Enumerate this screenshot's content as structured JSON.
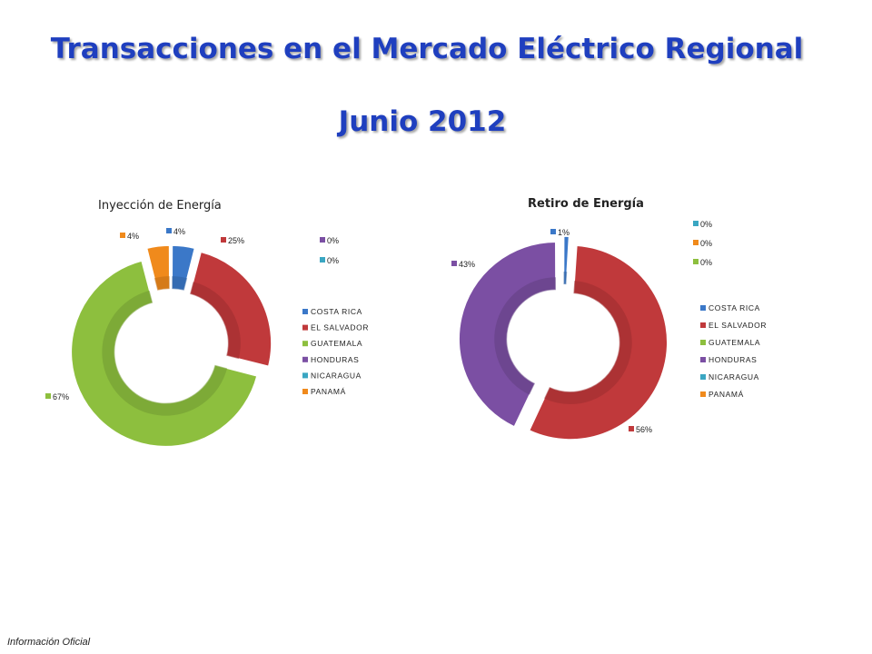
{
  "title": "Transacciones en el Mercado Eléctrico Regional",
  "subtitle": "Junio 2012",
  "footer": "Información Oficial",
  "chart_data": [
    {
      "type": "donut",
      "title": "Inyección de Energía",
      "categories": [
        "COSTA RICA",
        "EL SALVADOR",
        "GUATEMALA",
        "HONDURAS",
        "NICARAGUA",
        "PANAMÁ"
      ],
      "values": [
        4,
        25,
        67,
        0,
        0,
        4
      ],
      "labels": [
        "4%",
        "25%",
        "67%",
        "0%",
        "0%",
        "4%"
      ],
      "colors": [
        "#3b78c8",
        "#c0393b",
        "#8dbf3e",
        "#7b4fa3",
        "#3aa6c2",
        "#f08a1c"
      ],
      "legend": "right"
    },
    {
      "type": "donut",
      "title": "Retiro de Energía",
      "categories": [
        "COSTA RICA",
        "EL SALVADOR",
        "GUATEMALA",
        "HONDURAS",
        "NICARAGUA",
        "PANAMÁ"
      ],
      "values": [
        1,
        56,
        0,
        43,
        0,
        0
      ],
      "labels": [
        "1%",
        "56%",
        "0%",
        "43%",
        "0%",
        "0%"
      ],
      "colors": [
        "#3b78c8",
        "#c0393b",
        "#8dbf3e",
        "#7b4fa3",
        "#3aa6c2",
        "#f08a1c"
      ],
      "legend": "right"
    }
  ]
}
